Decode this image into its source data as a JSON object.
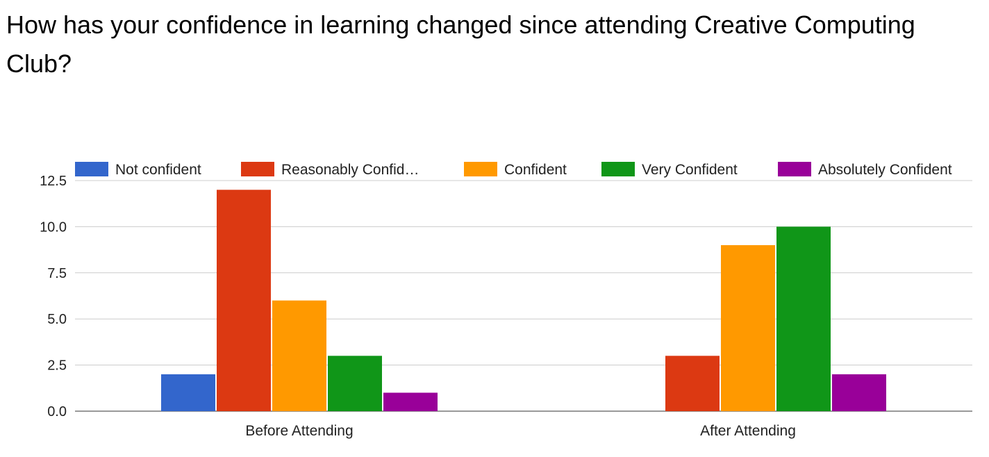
{
  "chart_data": {
    "type": "bar",
    "title": "How has your confidence in learning changed since attending Creative Computing Club?",
    "xlabel": "",
    "ylabel": "",
    "categories": [
      "Before Attending",
      "After Attending"
    ],
    "series": [
      {
        "name": "Not confident",
        "color": "#3366cc",
        "values": [
          2,
          0
        ]
      },
      {
        "name": "Reasonably Confid…",
        "color": "#dc3912",
        "values": [
          12,
          3
        ]
      },
      {
        "name": "Confident",
        "color": "#ff9900",
        "values": [
          6,
          9
        ]
      },
      {
        "name": "Very Confident",
        "color": "#109618",
        "values": [
          3,
          10
        ]
      },
      {
        "name": "Absolutely Confident",
        "color": "#990099",
        "values": [
          1,
          2
        ]
      }
    ],
    "ylim": [
      0,
      12.5
    ],
    "yticks": [
      "0.0",
      "2.5",
      "5.0",
      "7.5",
      "10.0",
      "12.5"
    ],
    "grid": true,
    "legend": "top"
  }
}
